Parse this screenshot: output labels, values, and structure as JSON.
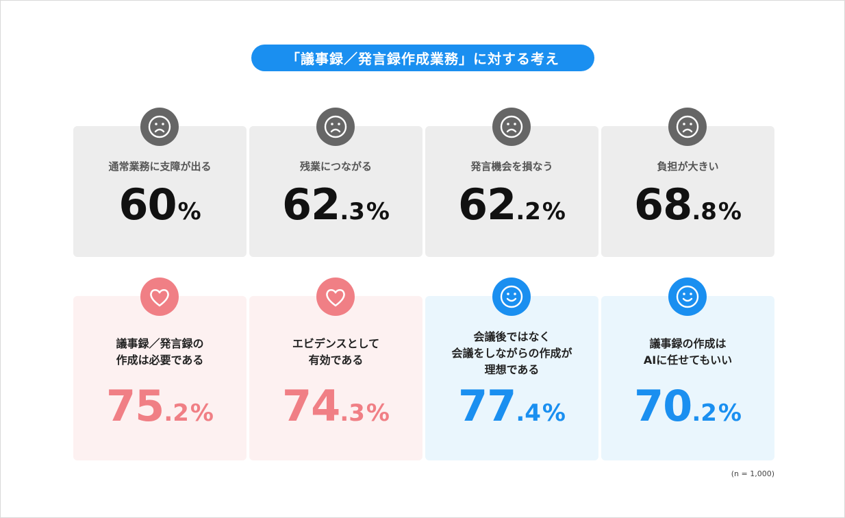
{
  "title": "「議事録／発言録作成業務」に対する考え",
  "note": "(n = 1,000)",
  "colors": {
    "accent_blue": "#1a8ff0",
    "accent_pink": "#f07f85",
    "negative_icon": "#666666",
    "negative_card": "#ededed",
    "pink_card": "#fdf1f1",
    "blue_card": "#eaf6fd"
  },
  "cards": [
    {
      "label_lines": [
        "通常業務に支障が出る"
      ],
      "int": "60",
      "dec": "",
      "unit": "%",
      "icon": "sad-face-icon",
      "tone": "neg"
    },
    {
      "label_lines": [
        "残業につながる"
      ],
      "int": "62",
      "dec": ".3",
      "unit": "%",
      "icon": "sad-face-icon",
      "tone": "neg"
    },
    {
      "label_lines": [
        "発言機会を損なう"
      ],
      "int": "62",
      "dec": ".2",
      "unit": "%",
      "icon": "sad-face-icon",
      "tone": "neg"
    },
    {
      "label_lines": [
        "負担が大きい"
      ],
      "int": "68",
      "dec": ".8",
      "unit": "%",
      "icon": "sad-face-icon",
      "tone": "neg"
    },
    {
      "label_lines": [
        "議事録／発言録の",
        "作成は必要である"
      ],
      "int": "75",
      "dec": ".2",
      "unit": "%",
      "icon": "heart-icon",
      "tone": "pink"
    },
    {
      "label_lines": [
        "エビデンスとして",
        "有効である"
      ],
      "int": "74",
      "dec": ".3",
      "unit": "%",
      "icon": "heart-icon",
      "tone": "pink"
    },
    {
      "label_lines": [
        "会議後ではなく",
        "会議をしながらの作成が",
        "理想である"
      ],
      "int": "77",
      "dec": ".4",
      "unit": "%",
      "icon": "smile-face-icon",
      "tone": "blue"
    },
    {
      "label_lines": [
        "議事録の作成は",
        "AIに任せてもいい"
      ],
      "int": "70",
      "dec": ".2",
      "unit": "%",
      "icon": "smile-face-icon",
      "tone": "blue"
    }
  ],
  "chart_data": {
    "type": "table",
    "title": "「議事録／発言録作成業務」に対する考え",
    "unit": "%",
    "categories": [
      "通常業務に支障が出る",
      "残業につながる",
      "発言機会を損なう",
      "負担が大きい",
      "議事録／発言録の作成は必要である",
      "エビデンスとして有効である",
      "会議後ではなく会議をしながらの作成が理想である",
      "議事録の作成はAIに任せてもいい"
    ],
    "values": [
      60,
      62.3,
      62.2,
      68.8,
      75.2,
      74.3,
      77.4,
      70.2
    ],
    "sample_size": "(n = 1,000)"
  }
}
